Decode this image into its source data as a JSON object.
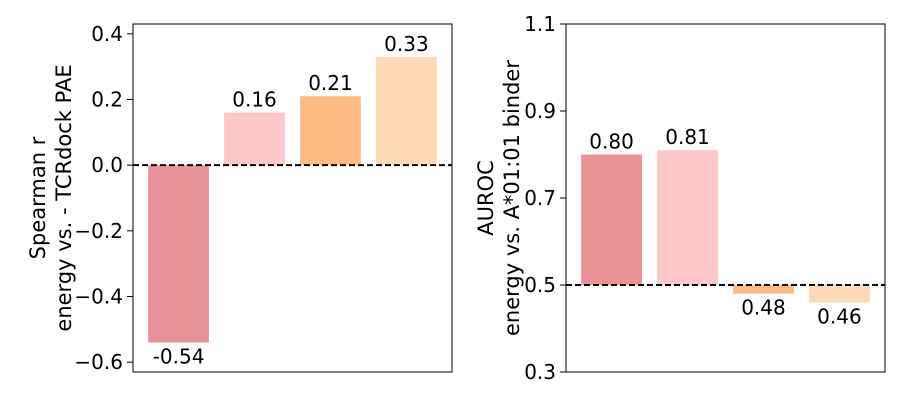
{
  "chart_data": [
    {
      "type": "bar",
      "categories": [
        "",
        "",
        "",
        ""
      ],
      "values": [
        -0.54,
        0.16,
        0.21,
        0.33
      ],
      "value_labels": [
        "-0.54",
        "0.16",
        "0.21",
        "0.33"
      ],
      "colors": [
        "#e99297",
        "#fec7c9",
        "#febc84",
        "#fed9b6"
      ],
      "ylabel_lines": [
        "Spearman r",
        "energy vs. - TCRdock PAE"
      ],
      "ylim": [
        -0.63,
        0.43
      ],
      "yticks": [
        -0.6,
        -0.4,
        -0.2,
        0.0,
        0.2,
        0.4
      ],
      "ytick_labels": [
        "−0.6",
        "−0.4",
        "−0.2",
        "0.0",
        "0.2",
        "0.4"
      ],
      "reference_line": 0.0,
      "grid": false
    },
    {
      "type": "bar",
      "categories": [
        "",
        "",
        "",
        ""
      ],
      "values": [
        0.8,
        0.81,
        0.48,
        0.46
      ],
      "value_labels": [
        "0.80",
        "0.81",
        "0.48",
        "0.46"
      ],
      "colors": [
        "#e99297",
        "#fec7c9",
        "#febc84",
        "#fed9b6"
      ],
      "ylabel_lines": [
        "AUROC",
        "energy vs. A*01:01 binder"
      ],
      "ylim": [
        0.3,
        1.1
      ],
      "yticks": [
        0.3,
        0.5,
        0.7,
        0.9,
        1.1
      ],
      "ytick_labels": [
        "0.3",
        "0.5",
        "0.7",
        "0.9",
        "1.1"
      ],
      "reference_line": 0.5,
      "grid": false
    }
  ]
}
